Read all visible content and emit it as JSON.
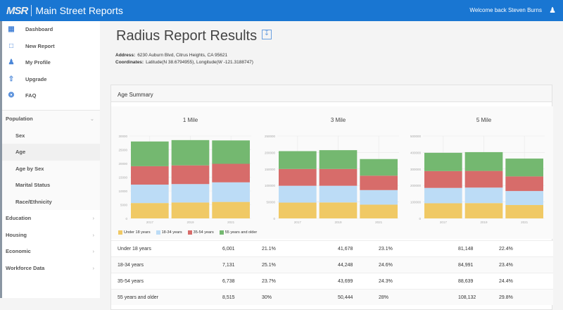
{
  "header": {
    "logo": "MSR",
    "app_name": "Main Street Reports",
    "welcome": "Welcome back Steven Burns",
    "user_icon": "user-icon"
  },
  "sidebar": {
    "top": [
      {
        "label": "Dashboard",
        "icon": "clipboard-icon"
      },
      {
        "label": "New Report",
        "icon": "document-icon"
      },
      {
        "label": "My Profile",
        "icon": "user-icon"
      },
      {
        "label": "Upgrade",
        "icon": "arrow-up-icon"
      },
      {
        "label": "FAQ",
        "icon": "lifebuoy-icon"
      }
    ],
    "population": {
      "label": "Population",
      "subs": [
        "Sex",
        "Age",
        "Age by Sex",
        "Marital Status",
        "Race/Ethnicity"
      ],
      "active": "Age"
    },
    "sections": [
      "Education",
      "Housing",
      "Economic",
      "Workforce Data"
    ]
  },
  "page": {
    "title": "Radius Report Results",
    "address_label": "Address:",
    "address": "6230 Auburn Blvd, Citrus Heights, CA 95621",
    "coords_label": "Coordinates:",
    "coords": "Latitude(N 38.6794955), Longitude(W -121.3188747)"
  },
  "card": {
    "title": "Age Summary"
  },
  "colors": {
    "Under 18 years": "#f0c965",
    "18-34 years": "#bcdcf6",
    "35-54 years": "#d76c6a",
    "55 years and older": "#74b870"
  },
  "chart_data": [
    {
      "type": "bar",
      "stacked": true,
      "title": "1 Mile",
      "categories": [
        "2017",
        "2019",
        "2021"
      ],
      "ylim": [
        0,
        30000
      ],
      "yticks": [
        0,
        5000,
        10000,
        15000,
        20000,
        25000,
        30000
      ],
      "grid": true,
      "series": [
        {
          "name": "Under 18 years",
          "values": [
            5600,
            5800,
            6001
          ]
        },
        {
          "name": "18-34 years",
          "values": [
            6700,
            6700,
            7131
          ]
        },
        {
          "name": "35-54 years",
          "values": [
            6700,
            6800,
            6738
          ]
        },
        {
          "name": "55 years and older",
          "values": [
            9000,
            9200,
            8515
          ]
        }
      ]
    },
    {
      "type": "bar",
      "stacked": true,
      "title": "3 Mile",
      "categories": [
        "2017",
        "2019",
        "2021"
      ],
      "ylim": [
        0,
        250000
      ],
      "yticks": [
        0,
        50000,
        100000,
        150000,
        200000,
        250000
      ],
      "grid": true,
      "series": [
        {
          "name": "Under 18 years",
          "values": [
            48000,
            48500,
            41678
          ]
        },
        {
          "name": "18-34 years",
          "values": [
            51000,
            50500,
            44248
          ]
        },
        {
          "name": "35-54 years",
          "values": [
            51000,
            51000,
            43699
          ]
        },
        {
          "name": "55 years and older",
          "values": [
            54000,
            57000,
            50444
          ]
        }
      ]
    },
    {
      "type": "bar",
      "stacked": true,
      "title": "5 Mile",
      "categories": [
        "2017",
        "2019",
        "2021"
      ],
      "ylim": [
        0,
        500000
      ],
      "yticks": [
        0,
        100000,
        200000,
        300000,
        400000,
        500000
      ],
      "grid": true,
      "series": [
        {
          "name": "Under 18 years",
          "values": [
            92000,
            93000,
            81148
          ]
        },
        {
          "name": "18-34 years",
          "values": [
            93000,
            94000,
            84991
          ]
        },
        {
          "name": "35-54 years",
          "values": [
            102000,
            101000,
            88639
          ]
        },
        {
          "name": "55 years and older",
          "values": [
            111000,
            114000,
            108132
          ]
        }
      ]
    }
  ],
  "legend": [
    "Under 18 years",
    "18-34 years",
    "35-54 years",
    "55 years and older"
  ],
  "table": [
    [
      "Under 18 years",
      "6,001",
      "21.1%",
      "41,678",
      "23.1%",
      "81,148",
      "22.4%"
    ],
    [
      "18-34 years",
      "7,131",
      "25.1%",
      "44,248",
      "24.6%",
      "84,991",
      "23.4%"
    ],
    [
      "35-54 years",
      "6,738",
      "23.7%",
      "43,699",
      "24.3%",
      "88,639",
      "24.4%"
    ],
    [
      "55 years and older",
      "8,515",
      "30%",
      "50,444",
      "28%",
      "108,132",
      "29.8%"
    ]
  ]
}
